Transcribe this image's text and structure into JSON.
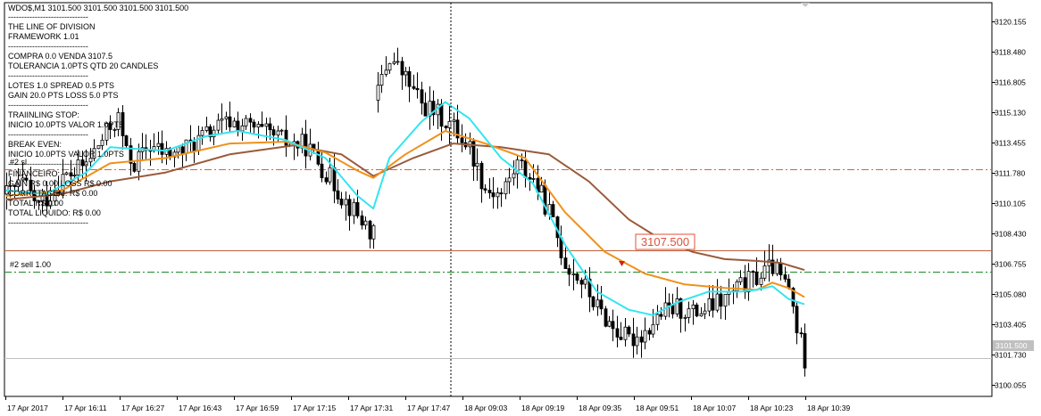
{
  "header": {
    "symbol_line": "WDO$,M1  3101.500 3101.500 3101.500 3101.500"
  },
  "info_panel": {
    "lines": [
      "------------------------------",
      "THE LINE OF DIVISION",
      "FRAMEWORK 1.01",
      "------------------------------",
      "COMPRA 0.0 VENDA 3107.5",
      "TOLERANCIA 1.0PTS QTD 20 CANDLES",
      "------------------------------",
      "LOTES 1.0 SPREAD 0.5 PTS",
      "GAIN 20.0 PTS LOSS 5.0 PTS",
      "------------------------------",
      "TRAIINLING STOP:",
      "INICIO 10.0PTS VALOR 1.0PTS",
      "------------------------------",
      "BREAK EVEN:",
      "INICIO 10.0PTS VALOR 1.0PTS",
      "------------------------------",
      "FINANCEIRO:",
      "GAIN R$ 0.00 LOSS R$ 0.00",
      "CORRETAGEM: R$ 0.00",
      "TOTAL R$ 0.00",
      "TOTAL LIQUIDO: R$ 0.00",
      "------------------------------"
    ]
  },
  "order_labels": {
    "order_1": "#2 sl",
    "order_2": "#2 sell 1.00"
  },
  "price_box_label": "3107.500",
  "current_price_label": "3101.500",
  "colors": {
    "ma_fast": "#33e5f0",
    "ma_mid": "#f0901a",
    "ma_slow": "#9a5a3a",
    "stop_line": "#e0602a",
    "sell_line": "#1a8a2a",
    "entry_line": "#c0603a",
    "bid_line": "#c0c0c0",
    "price_box": "#e0503a"
  },
  "chart_data": {
    "type": "candlestick",
    "title": "",
    "xlabel": "",
    "ylabel": "",
    "ylim": [
      3099.4,
      3121.2
    ],
    "y_ticks": [
      "3120.155",
      "3118.480",
      "3116.805",
      "3115.130",
      "3113.455",
      "3111.780",
      "3110.105",
      "3108.430",
      "3106.755",
      "3105.080",
      "3103.405",
      "3101.730",
      "3100.055"
    ],
    "x_ticks": [
      "17 Apr 2017",
      "17 Apr 16:11",
      "17 Apr 16:27",
      "17 Apr 16:43",
      "17 Apr 16:59",
      "17 Apr 17:15",
      "17 Apr 17:31",
      "17 Apr 17:47",
      "18 Apr 09:03",
      "18 Apr 09:19",
      "18 Apr 09:35",
      "18 Apr 09:51",
      "18 Apr 10:07",
      "18 Apr 10:23",
      "18 Apr 10:39"
    ],
    "horizontal_levels": [
      {
        "name": "#2 sl",
        "value": 3112.0,
        "style": "dash-dot"
      },
      {
        "name": "#2 sell 1.00",
        "value": 3106.3,
        "style": "dash-dot"
      },
      {
        "name": "3107.500",
        "value": 3107.5,
        "style": "solid"
      },
      {
        "name": "3101.500",
        "value": 3101.5,
        "style": "solid"
      }
    ],
    "anchors": [
      [
        0,
        3110.6
      ],
      [
        4,
        3111.2
      ],
      [
        8,
        3110.0
      ],
      [
        11,
        3110.6
      ],
      [
        14,
        3111.5
      ],
      [
        17,
        3111.8
      ],
      [
        20,
        3112.3
      ],
      [
        23,
        3113.3
      ],
      [
        26,
        3114.3
      ],
      [
        28,
        3114.8
      ],
      [
        30,
        3112.8
      ],
      [
        32,
        3112.3
      ],
      [
        36,
        3113.3
      ],
      [
        40,
        3112.8
      ],
      [
        44,
        3113.0
      ],
      [
        48,
        3113.6
      ],
      [
        52,
        3114.2
      ],
      [
        56,
        3114.6
      ],
      [
        60,
        3114.4
      ],
      [
        64,
        3114.0
      ],
      [
        68,
        3113.7
      ],
      [
        71,
        3113.4
      ],
      [
        75,
        3113.3
      ],
      [
        80,
        3111.8
      ],
      [
        85,
        3110.2
      ],
      [
        90,
        3108.9
      ],
      [
        92,
        3108.3
      ],
      [
        93,
        3116.4
      ],
      [
        96,
        3118.2
      ],
      [
        100,
        3117.0
      ],
      [
        104,
        3115.6
      ],
      [
        108,
        3115.0
      ],
      [
        112,
        3114.3
      ],
      [
        116,
        3113.2
      ],
      [
        120,
        3110.9
      ],
      [
        124,
        3110.6
      ],
      [
        128,
        3112.3
      ],
      [
        132,
        3111.4
      ],
      [
        136,
        3109.6
      ],
      [
        140,
        3106.8
      ],
      [
        144,
        3105.8
      ],
      [
        148,
        3104.3
      ],
      [
        152,
        3103.2
      ],
      [
        156,
        3102.5
      ],
      [
        160,
        3103.0
      ],
      [
        164,
        3104.0
      ],
      [
        168,
        3104.3
      ],
      [
        172,
        3104.0
      ],
      [
        176,
        3104.3
      ],
      [
        180,
        3104.8
      ],
      [
        184,
        3105.5
      ],
      [
        188,
        3106.0
      ],
      [
        192,
        3106.6
      ],
      [
        196,
        3105.3
      ],
      [
        198,
        3103.2
      ],
      [
        200,
        3101.5
      ]
    ],
    "ma_fast": [
      [
        0,
        3110.8
      ],
      [
        10,
        3110.6
      ],
      [
        20,
        3111.8
      ],
      [
        26,
        3113.2
      ],
      [
        40,
        3113.0
      ],
      [
        50,
        3113.8
      ],
      [
        58,
        3114.1
      ],
      [
        70,
        3113.6
      ],
      [
        80,
        3112.6
      ],
      [
        88,
        3110.5
      ],
      [
        92,
        3109.8
      ],
      [
        96,
        3112.6
      ],
      [
        104,
        3114.6
      ],
      [
        110,
        3115.7
      ],
      [
        116,
        3114.8
      ],
      [
        124,
        3112.6
      ],
      [
        132,
        3111.2
      ],
      [
        140,
        3107.8
      ],
      [
        148,
        3105.2
      ],
      [
        156,
        3104.2
      ],
      [
        162,
        3103.9
      ],
      [
        168,
        3104.6
      ],
      [
        176,
        3105.2
      ],
      [
        184,
        3105.2
      ],
      [
        188,
        3105.3
      ],
      [
        192,
        3105.5
      ],
      [
        196,
        3104.8
      ],
      [
        200,
        3104.5
      ]
    ],
    "ma_mid": [
      [
        0,
        3110.5
      ],
      [
        14,
        3110.8
      ],
      [
        26,
        3112.3
      ],
      [
        40,
        3112.6
      ],
      [
        56,
        3113.4
      ],
      [
        70,
        3113.5
      ],
      [
        80,
        3112.9
      ],
      [
        88,
        3111.9
      ],
      [
        92,
        3111.5
      ],
      [
        100,
        3112.8
      ],
      [
        110,
        3114.1
      ],
      [
        120,
        3113.4
      ],
      [
        130,
        3112.6
      ],
      [
        140,
        3109.6
      ],
      [
        150,
        3107.4
      ],
      [
        160,
        3106.2
      ],
      [
        170,
        3105.6
      ],
      [
        180,
        3105.4
      ],
      [
        188,
        3105.3
      ],
      [
        192,
        3105.7
      ],
      [
        196,
        3105.4
      ],
      [
        200,
        3104.9
      ]
    ],
    "ma_slow": [
      [
        0,
        3110.3
      ],
      [
        14,
        3110.6
      ],
      [
        26,
        3111.3
      ],
      [
        40,
        3111.8
      ],
      [
        56,
        3112.8
      ],
      [
        72,
        3113.3
      ],
      [
        84,
        3112.8
      ],
      [
        92,
        3111.6
      ],
      [
        102,
        3112.6
      ],
      [
        112,
        3113.4
      ],
      [
        124,
        3113.2
      ],
      [
        136,
        3112.8
      ],
      [
        146,
        3111.3
      ],
      [
        156,
        3109.2
      ],
      [
        164,
        3108.1
      ],
      [
        172,
        3107.4
      ],
      [
        180,
        3107.0
      ],
      [
        188,
        3106.9
      ],
      [
        194,
        3106.8
      ],
      [
        200,
        3106.4
      ]
    ]
  }
}
